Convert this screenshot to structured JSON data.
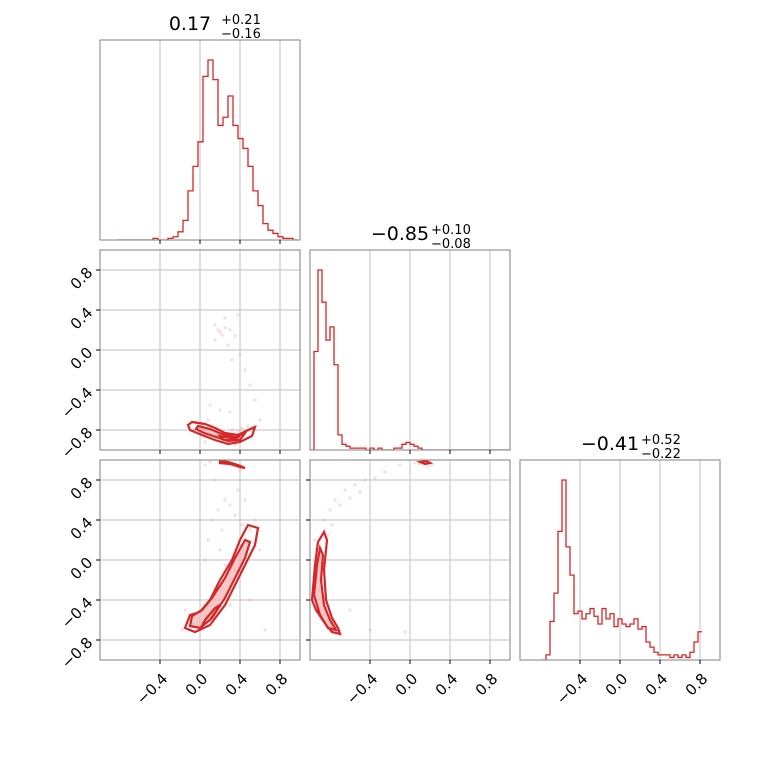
{
  "chart_data": {
    "type": "corner",
    "color": "#d62728",
    "fill_color": "#f4b0b2",
    "ticks": [
      "−0.4",
      "0.0",
      "0.4",
      "0.8"
    ],
    "ytick_values": [
      -0.8,
      -0.4,
      0.0,
      0.4,
      0.8
    ],
    "ytick_labels": [
      "−0.8",
      "−0.4",
      "0.0",
      "0.4",
      "0.8"
    ],
    "xtick_values": [
      -0.4,
      0.0,
      0.4,
      0.8
    ],
    "axis_range": [
      -1.0,
      1.0
    ],
    "params": [
      {
        "title_value": "0.17",
        "title_plus": "+0.21",
        "title_minus": "−0.16",
        "hist_bin_edges_start": -0.82,
        "hist_bin_width": 0.05,
        "hist_counts": [
          0,
          0,
          0,
          0,
          0,
          0,
          0,
          1,
          0,
          0,
          1,
          2,
          5,
          12,
          30,
          45,
          60,
          100,
          110,
          98,
          70,
          75,
          88,
          70,
          62,
          56,
          45,
          30,
          21,
          10,
          6,
          4,
          2,
          1,
          1,
          0
        ]
      },
      {
        "title_value": "−0.85",
        "title_plus": "+0.10",
        "title_minus": "−0.08",
        "hist_bin_edges_start": -1.0,
        "hist_bin_width": 0.04,
        "hist_counts": [
          0,
          52,
          95,
          78,
          58,
          65,
          45,
          8,
          3,
          2,
          1,
          1,
          1,
          1,
          0,
          1,
          0,
          1,
          0,
          0,
          0,
          1,
          1,
          3,
          4,
          3,
          2,
          1,
          0,
          0,
          0,
          0,
          0,
          0,
          0,
          0,
          0,
          0,
          0,
          0,
          0,
          0,
          0,
          0,
          0,
          0,
          0,
          0,
          0,
          0
        ]
      },
      {
        "title_value": "−0.41",
        "title_plus": "+0.52",
        "title_minus": "−0.22",
        "hist_bin_edges_start": -0.78,
        "hist_bin_width": 0.04,
        "hist_counts": [
          0,
          2,
          15,
          26,
          50,
          70,
          44,
          33,
          18,
          19,
          16,
          18,
          20,
          17,
          14,
          20,
          16,
          18,
          13,
          16,
          14,
          13,
          14,
          16,
          12,
          13,
          7,
          5,
          3,
          2,
          2,
          2,
          1,
          2,
          1,
          2,
          1,
          3,
          7,
          11
        ]
      }
    ],
    "panels": [
      {
        "row": 1,
        "col": 0,
        "scatter": [
          [
            0.0,
            -0.8
          ],
          [
            0.05,
            -0.78
          ],
          [
            0.1,
            -0.82
          ],
          [
            0.15,
            -0.85
          ],
          [
            0.2,
            -0.84
          ],
          [
            0.25,
            -0.88
          ],
          [
            0.3,
            -0.86
          ],
          [
            0.35,
            -0.9
          ],
          [
            0.4,
            -0.88
          ],
          [
            0.45,
            -0.84
          ],
          [
            0.5,
            -0.8
          ],
          [
            -0.05,
            -0.72
          ],
          [
            0.02,
            -0.75
          ],
          [
            0.08,
            -0.7
          ],
          [
            0.12,
            -0.76
          ],
          [
            0.18,
            -0.79
          ],
          [
            0.22,
            -0.9
          ],
          [
            0.28,
            -0.92
          ],
          [
            0.32,
            -0.8
          ],
          [
            0.38,
            -0.82
          ],
          [
            0.42,
            -0.78
          ],
          [
            0.48,
            -0.76
          ],
          [
            0.18,
            0.2
          ],
          [
            0.2,
            0.18
          ],
          [
            0.22,
            0.15
          ],
          [
            0.25,
            0.22
          ],
          [
            0.3,
            0.2
          ],
          [
            0.35,
            0.14
          ],
          [
            0.15,
            0.25
          ],
          [
            0.4,
            -0.05
          ],
          [
            0.45,
            -0.2
          ],
          [
            0.5,
            -0.35
          ],
          [
            0.55,
            -0.5
          ],
          [
            0.2,
            -0.6
          ],
          [
            0.1,
            -0.55
          ],
          [
            0.6,
            -0.7
          ],
          [
            0.05,
            -0.92
          ],
          [
            0.35,
            -0.95
          ],
          [
            0.25,
            0.32
          ],
          [
            0.28,
            0.05
          ],
          [
            0.32,
            -0.1
          ],
          [
            0.38,
            0.35
          ],
          [
            0.3,
            -0.62
          ],
          [
            0.15,
            0.1
          ]
        ],
        "contours": [
          [
            [
              -0.08,
              -0.72
            ],
            [
              0.05,
              -0.74
            ],
            [
              0.15,
              -0.78
            ],
            [
              0.25,
              -0.83
            ],
            [
              0.38,
              -0.85
            ],
            [
              0.48,
              -0.8
            ],
            [
              0.55,
              -0.77
            ],
            [
              0.52,
              -0.86
            ],
            [
              0.4,
              -0.92
            ],
            [
              0.28,
              -0.94
            ],
            [
              0.15,
              -0.9
            ],
            [
              0.02,
              -0.85
            ],
            [
              -0.1,
              -0.8
            ],
            [
              -0.12,
              -0.75
            ]
          ],
          [
            [
              -0.02,
              -0.76
            ],
            [
              0.1,
              -0.79
            ],
            [
              0.22,
              -0.84
            ],
            [
              0.35,
              -0.87
            ],
            [
              0.45,
              -0.83
            ],
            [
              0.4,
              -0.9
            ],
            [
              0.28,
              -0.91
            ],
            [
              0.16,
              -0.87
            ],
            [
              0.04,
              -0.83
            ],
            [
              -0.04,
              -0.79
            ]
          ],
          [
            [
              0.2,
              -0.86
            ],
            [
              0.32,
              -0.88
            ],
            [
              0.4,
              -0.86
            ],
            [
              0.34,
              -0.9
            ],
            [
              0.24,
              -0.9
            ]
          ]
        ]
      },
      {
        "row": 2,
        "col": 0,
        "scatter": [
          [
            0.05,
            0.95
          ],
          [
            0.1,
            0.98
          ],
          [
            0.2,
            0.97
          ],
          [
            0.3,
            0.96
          ],
          [
            0.4,
            0.94
          ],
          [
            0.15,
            0.8
          ],
          [
            0.3,
            0.55
          ],
          [
            0.35,
            0.45
          ],
          [
            0.42,
            0.35
          ],
          [
            0.45,
            0.2
          ],
          [
            0.5,
            0.3
          ],
          [
            0.25,
            0.6
          ],
          [
            0.2,
            0.1
          ],
          [
            0.25,
            -0.05
          ],
          [
            0.3,
            -0.2
          ],
          [
            0.35,
            -0.1
          ],
          [
            0.4,
            0.05
          ],
          [
            0.15,
            -0.3
          ],
          [
            0.1,
            -0.45
          ],
          [
            0.05,
            -0.55
          ],
          [
            0.0,
            -0.62
          ],
          [
            -0.05,
            -0.65
          ],
          [
            -0.1,
            -0.58
          ],
          [
            0.45,
            0.6
          ],
          [
            0.38,
            0.7
          ],
          [
            0.55,
            0.4
          ],
          [
            0.6,
            0.1
          ],
          [
            0.12,
            0.4
          ],
          [
            0.08,
            0.2
          ],
          [
            -0.15,
            -0.5
          ],
          [
            -0.18,
            -0.7
          ],
          [
            0.5,
            -0.4
          ],
          [
            0.65,
            -0.7
          ],
          [
            0.3,
            -0.45
          ],
          [
            0.22,
            0.3
          ],
          [
            0.4,
            0.9
          ],
          [
            0.18,
            0.5
          ],
          [
            0.05,
            0.0
          ]
        ],
        "contours": [
          [
            [
              -0.15,
              -0.68
            ],
            [
              -0.05,
              -0.72
            ],
            [
              0.1,
              -0.65
            ],
            [
              0.25,
              -0.45
            ],
            [
              0.35,
              -0.25
            ],
            [
              0.45,
              -0.05
            ],
            [
              0.55,
              0.15
            ],
            [
              0.58,
              0.32
            ],
            [
              0.48,
              0.35
            ],
            [
              0.4,
              0.2
            ],
            [
              0.32,
              0.0
            ],
            [
              0.2,
              -0.2
            ],
            [
              0.1,
              -0.4
            ],
            [
              0.0,
              -0.52
            ],
            [
              -0.1,
              -0.55
            ]
          ],
          [
            [
              -0.1,
              -0.66
            ],
            [
              0.0,
              -0.68
            ],
            [
              0.12,
              -0.58
            ],
            [
              0.25,
              -0.38
            ],
            [
              0.35,
              -0.18
            ],
            [
              0.45,
              0.02
            ],
            [
              0.5,
              0.18
            ],
            [
              0.45,
              0.2
            ],
            [
              0.35,
              0.02
            ],
            [
              0.25,
              -0.18
            ],
            [
              0.12,
              -0.38
            ],
            [
              0.02,
              -0.5
            ],
            [
              -0.08,
              -0.56
            ]
          ],
          [
            [
              0.02,
              -0.66
            ],
            [
              0.1,
              -0.6
            ],
            [
              0.2,
              -0.45
            ],
            [
              0.15,
              -0.48
            ],
            [
              0.05,
              -0.6
            ]
          ],
          [
            [
              0.2,
              0.97
            ],
            [
              0.3,
              0.96
            ],
            [
              0.4,
              0.93
            ],
            [
              0.45,
              0.92
            ],
            [
              0.38,
              0.95
            ],
            [
              0.28,
              0.98
            ],
            [
              0.2,
              0.99
            ]
          ]
        ]
      },
      {
        "row": 2,
        "col": 1,
        "scatter": [
          [
            -0.95,
            0.2
          ],
          [
            -0.92,
            0.0
          ],
          [
            -0.9,
            -0.2
          ],
          [
            -0.88,
            -0.4
          ],
          [
            -0.85,
            -0.55
          ],
          [
            -0.8,
            -0.62
          ],
          [
            -0.75,
            -0.68
          ],
          [
            -0.7,
            -0.72
          ],
          [
            -0.94,
            0.1
          ],
          [
            -0.93,
            -0.1
          ],
          [
            -0.91,
            -0.3
          ],
          [
            -0.86,
            0.4
          ],
          [
            -0.8,
            0.5
          ],
          [
            -0.75,
            0.6
          ],
          [
            -0.65,
            0.7
          ],
          [
            -0.55,
            0.75
          ],
          [
            -0.45,
            0.8
          ],
          [
            -0.35,
            0.82
          ],
          [
            -0.25,
            0.88
          ],
          [
            -0.1,
            0.95
          ],
          [
            0.05,
            0.97
          ],
          [
            0.15,
            0.98
          ],
          [
            0.2,
            0.99
          ],
          [
            -0.7,
            0.55
          ],
          [
            -0.6,
            0.62
          ],
          [
            -0.5,
            0.68
          ],
          [
            -0.78,
            0.35
          ],
          [
            -0.82,
            0.25
          ],
          [
            0.1,
            0.96
          ],
          [
            0.18,
            0.93
          ],
          [
            0.22,
            0.95
          ],
          [
            -0.4,
            -0.7
          ],
          [
            -0.05,
            -0.72
          ],
          [
            -0.6,
            -0.5
          ],
          [
            -0.85,
            0.3
          ]
        ],
        "contours": [
          [
            [
              -0.98,
              -0.4
            ],
            [
              -0.95,
              -0.05
            ],
            [
              -0.92,
              0.18
            ],
            [
              -0.86,
              0.28
            ],
            [
              -0.83,
              0.2
            ],
            [
              -0.86,
              -0.1
            ],
            [
              -0.84,
              -0.4
            ],
            [
              -0.78,
              -0.58
            ],
            [
              -0.72,
              -0.68
            ],
            [
              -0.7,
              -0.74
            ],
            [
              -0.78,
              -0.72
            ],
            [
              -0.86,
              -0.62
            ],
            [
              -0.94,
              -0.5
            ]
          ],
          [
            [
              -0.96,
              -0.35
            ],
            [
              -0.93,
              -0.05
            ],
            [
              -0.9,
              0.12
            ],
            [
              -0.87,
              0.05
            ],
            [
              -0.89,
              -0.2
            ],
            [
              -0.86,
              -0.45
            ],
            [
              -0.8,
              -0.6
            ],
            [
              -0.74,
              -0.7
            ],
            [
              -0.82,
              -0.68
            ],
            [
              -0.9,
              -0.55
            ]
          ],
          [
            [
              0.1,
              0.98
            ],
            [
              0.15,
              0.96
            ],
            [
              0.2,
              0.97
            ],
            [
              0.16,
              0.99
            ]
          ]
        ]
      }
    ]
  }
}
